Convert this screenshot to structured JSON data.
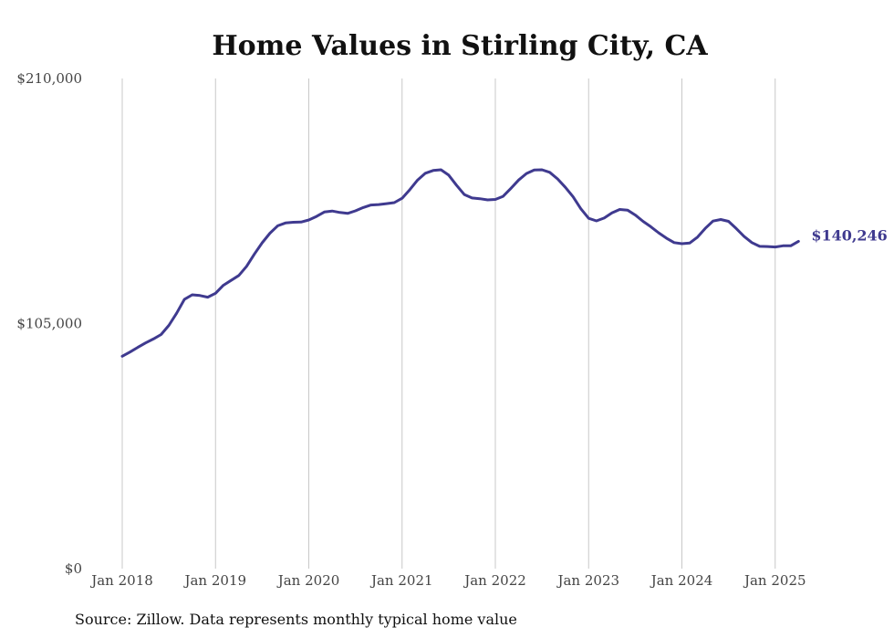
{
  "chart_data": {
    "type": "line",
    "title": "Home Values in Stirling City, CA",
    "source": "Source: Zillow. Data represents monthly typical home value",
    "ylim": [
      0,
      210000
    ],
    "y_ticks": [
      {
        "value": 0,
        "label": "$0"
      },
      {
        "value": 105000,
        "label": "$105,000"
      },
      {
        "value": 210000,
        "label": "$210,000"
      }
    ],
    "x_ticks": [
      {
        "value": "2018-01",
        "label": "Jan 2018"
      },
      {
        "value": "2019-01",
        "label": "Jan 2019"
      },
      {
        "value": "2020-01",
        "label": "Jan 2020"
      },
      {
        "value": "2021-01",
        "label": "Jan 2021"
      },
      {
        "value": "2022-01",
        "label": "Jan 2022"
      },
      {
        "value": "2023-01",
        "label": "Jan 2023"
      },
      {
        "value": "2024-01",
        "label": "Jan 2024"
      },
      {
        "value": "2025-01",
        "label": "Jan 2025"
      }
    ],
    "grid": {
      "vertical": true,
      "horizontal": false
    },
    "line_color": "#3f3a8f",
    "end_label": "$140,246",
    "series": [
      {
        "x": [
          "2018-01",
          "2018-02",
          "2018-03",
          "2018-04",
          "2018-05",
          "2018-06",
          "2018-07",
          "2018-08",
          "2018-09",
          "2018-10",
          "2018-11",
          "2018-12",
          "2019-01",
          "2019-02",
          "2019-03",
          "2019-04",
          "2019-05",
          "2019-06",
          "2019-07",
          "2019-08",
          "2019-09",
          "2019-10",
          "2019-11",
          "2019-12",
          "2020-01",
          "2020-02",
          "2020-03",
          "2020-04",
          "2020-05",
          "2020-06",
          "2020-07",
          "2020-08",
          "2020-09",
          "2020-10",
          "2020-11",
          "2020-12",
          "2021-01",
          "2021-02",
          "2021-03",
          "2021-04",
          "2021-05",
          "2021-06",
          "2021-07",
          "2021-08",
          "2021-09",
          "2021-10",
          "2021-11",
          "2021-12",
          "2022-01",
          "2022-02",
          "2022-03",
          "2022-04",
          "2022-05",
          "2022-06",
          "2022-07",
          "2022-08",
          "2022-09",
          "2022-10",
          "2022-11",
          "2022-12",
          "2023-01",
          "2023-02",
          "2023-03",
          "2023-04",
          "2023-05",
          "2023-06",
          "2023-07",
          "2023-08",
          "2023-09",
          "2023-10",
          "2023-11",
          "2023-12",
          "2024-01",
          "2024-02",
          "2024-03",
          "2024-04",
          "2024-05",
          "2024-06",
          "2024-07",
          "2024-08",
          "2024-09",
          "2024-10",
          "2024-11",
          "2024-12",
          "2025-01",
          "2025-02",
          "2025-03",
          "2025-04"
        ],
        "values": [
          91000,
          92800,
          94800,
          96700,
          98400,
          100300,
          104200,
          109400,
          115400,
          117300,
          117000,
          116300,
          118000,
          121400,
          123500,
          125600,
          129500,
          134800,
          139600,
          143700,
          146900,
          148100,
          148400,
          148500,
          149400,
          150900,
          152800,
          153200,
          152600,
          152200,
          153300,
          154700,
          155800,
          156000,
          156400,
          156800,
          158700,
          162400,
          166500,
          169400,
          170600,
          170900,
          168600,
          164300,
          160300,
          158800,
          158500,
          158000,
          158200,
          159500,
          162900,
          166500,
          169300,
          170800,
          170900,
          169800,
          167000,
          163400,
          159300,
          154200,
          150100,
          149000,
          150200,
          152400,
          153900,
          153600,
          151500,
          148800,
          146500,
          143900,
          141600,
          139700,
          139200,
          139500,
          142000,
          145800,
          148900,
          149600,
          148800,
          145700,
          142300,
          139700,
          138100,
          138000,
          137800,
          138300,
          138300,
          140246
        ]
      }
    ]
  }
}
